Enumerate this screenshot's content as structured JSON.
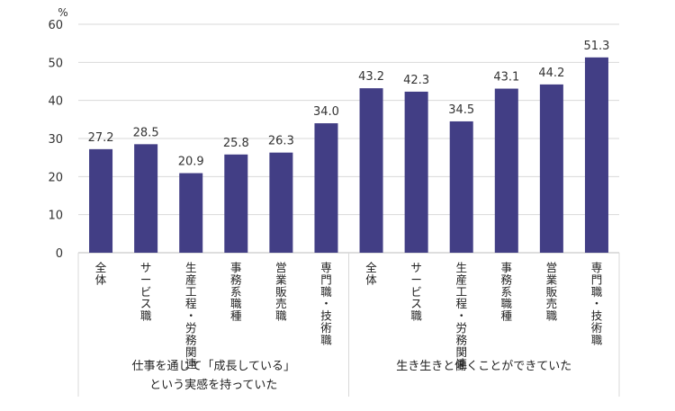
{
  "chart_data": {
    "type": "bar",
    "unit": "%",
    "ylim": [
      0,
      60
    ],
    "yticks": [
      0,
      10,
      20,
      30,
      40,
      50,
      60
    ],
    "grid": true,
    "bar_color": "#423E85",
    "groups": [
      {
        "label_lines": [
          "仕事を通じて「成長している」",
          "という実感を持っていた"
        ],
        "categories": [
          "全体",
          "サービス職",
          "生産工程・労務関連",
          "事務系職種",
          "営業販売職",
          "専門職・技術職"
        ],
        "values": [
          27.2,
          28.5,
          20.9,
          25.8,
          26.3,
          34.0
        ],
        "labels": [
          "27.2",
          "28.5",
          "20.9",
          "25.8",
          "26.3",
          "34.0"
        ]
      },
      {
        "label_lines": [
          "生き生きと働くことができていた"
        ],
        "categories": [
          "全体",
          "サービス職",
          "生産工程・労務関連",
          "事務系職種",
          "営業販売職",
          "専門職・技術職"
        ],
        "values": [
          43.2,
          42.3,
          34.5,
          43.1,
          44.2,
          51.3
        ],
        "labels": [
          "43.2",
          "42.3",
          "34.5",
          "43.1",
          "44.2",
          "51.3"
        ]
      }
    ]
  }
}
